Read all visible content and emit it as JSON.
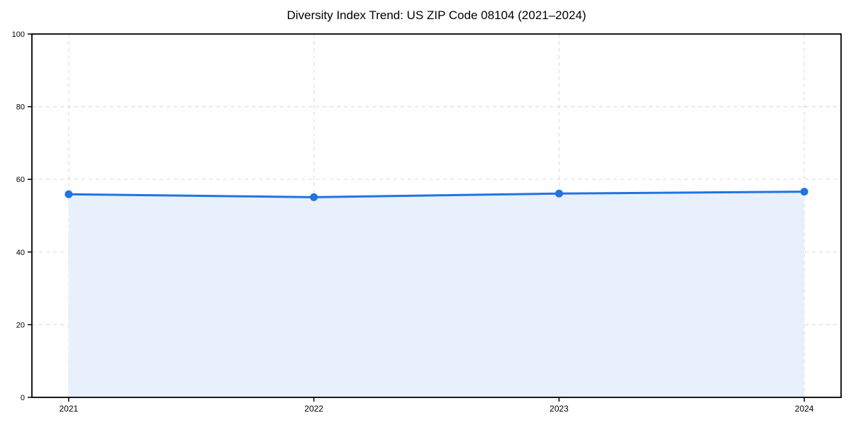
{
  "chart_data": {
    "type": "area",
    "title": "Diversity Index Trend: US ZIP Code 08104 (2021–2024)",
    "x": [
      2021,
      2022,
      2023,
      2024
    ],
    "values": [
      55.9,
      55.1,
      56.1,
      56.6
    ],
    "xticks": [
      2021,
      2022,
      2023,
      2024
    ],
    "yticks": [
      0,
      20,
      40,
      60,
      80,
      100
    ],
    "ylim": [
      0,
      100
    ],
    "xlabel": "",
    "ylabel": "",
    "grid": true,
    "grid_style": "dashed",
    "legend": "none",
    "x_margin_fraction": 0.05,
    "colors": {
      "line": "#2273e0",
      "marker": "#2273e0",
      "fill": "#e8f0fc",
      "grid": "#dedede",
      "spine": "#000000",
      "background": "#ffffff",
      "tick_label": "#000000"
    }
  }
}
